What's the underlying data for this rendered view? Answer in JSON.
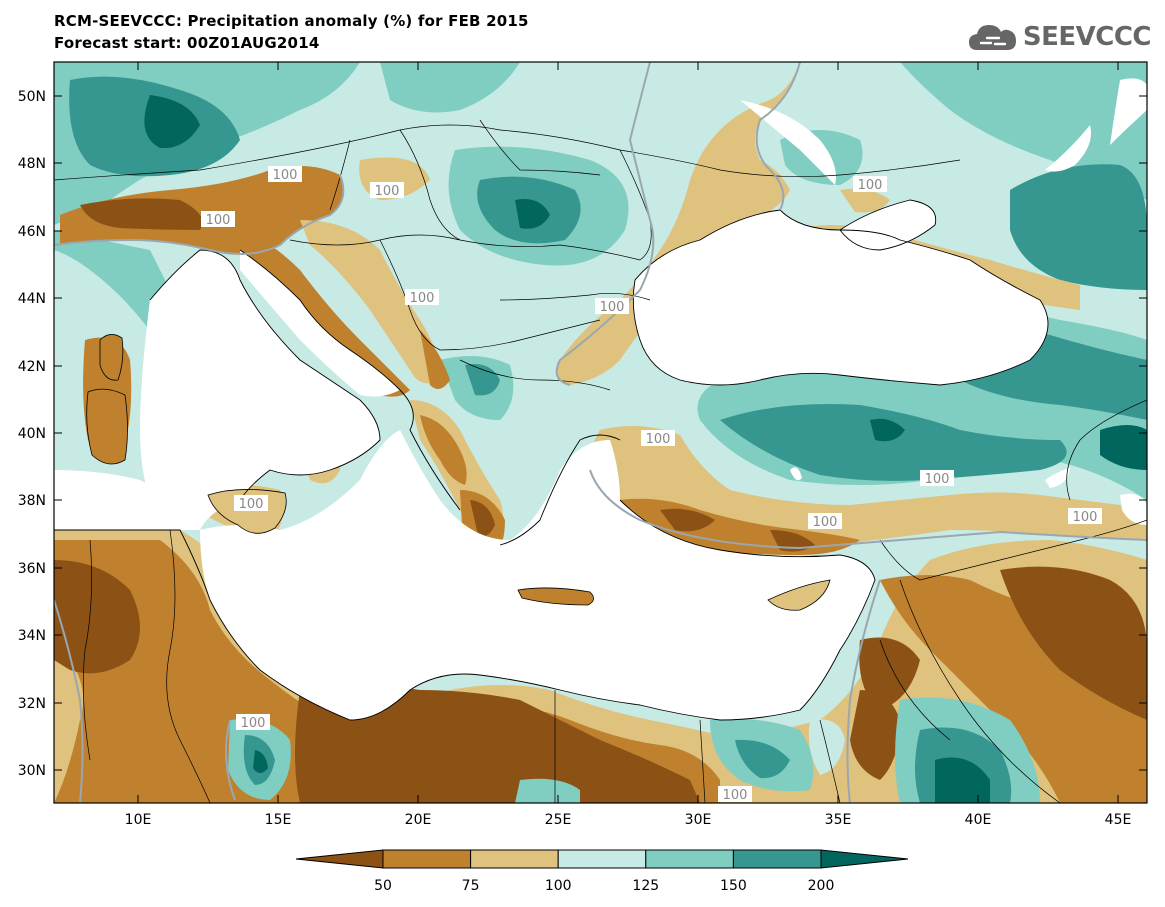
{
  "header": {
    "title_line1": "RCM-SEEVCCC: Precipitation anomaly (%) for FEB 2015",
    "title_line2": "Forecast start: 00Z01AUG2014",
    "logo_text": "SEEVCCC"
  },
  "map": {
    "lon_range": [
      7,
      46
    ],
    "lat_range": [
      29,
      51
    ],
    "lat_ticks": [
      "50N",
      "48N",
      "46N",
      "44N",
      "42N",
      "40N",
      "38N",
      "36N",
      "34N",
      "32N",
      "30N"
    ],
    "lon_ticks": [
      "10E",
      "15E",
      "20E",
      "25E",
      "30E",
      "35E",
      "40E",
      "45E"
    ],
    "contour_labels": [
      "100",
      "100",
      "100",
      "100",
      "100",
      "100",
      "100",
      "100",
      "100",
      "100",
      "100",
      "100",
      "100"
    ]
  },
  "colorbar": {
    "labels": [
      "50",
      "75",
      "100",
      "125",
      "150",
      "200"
    ],
    "colors": [
      "#8c5115",
      "#bf812d",
      "#dfc27d",
      "#c7eae5",
      "#80cdc1",
      "#35978f",
      "#01665e"
    ]
  }
}
